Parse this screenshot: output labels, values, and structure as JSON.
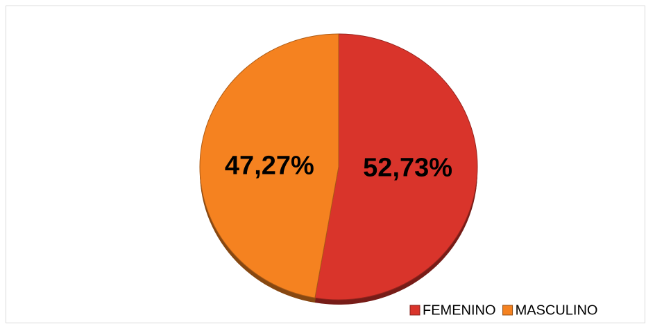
{
  "chart_data": {
    "type": "pie",
    "categories": [
      "FEMENINO",
      "MASCULINO"
    ],
    "values": [
      52.73,
      47.27
    ],
    "value_labels": [
      "52,73%",
      "47,27%"
    ],
    "colors": [
      "#d9342b",
      "#f58220"
    ],
    "legend": "bottom-right"
  }
}
